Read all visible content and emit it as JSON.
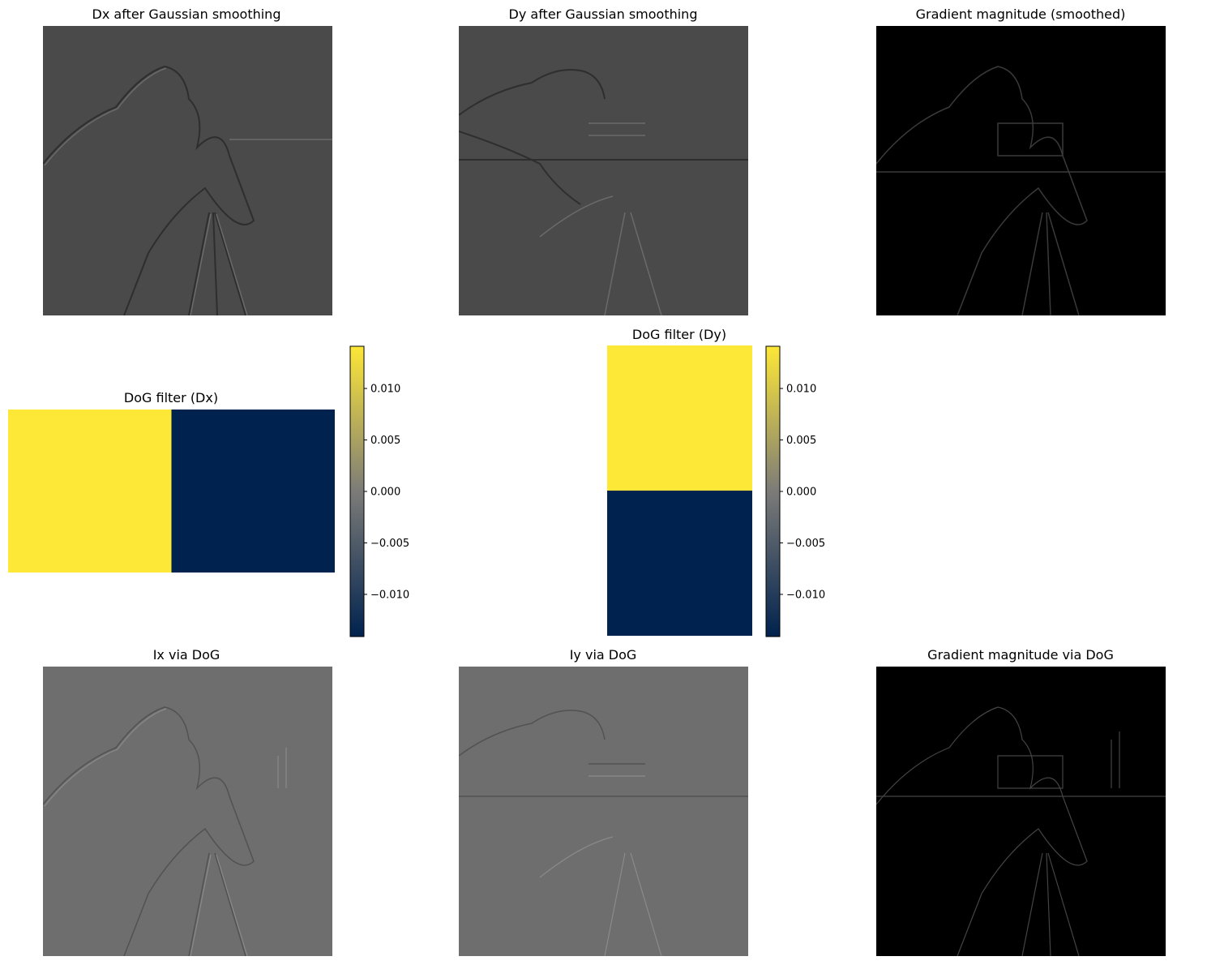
{
  "chart_data": [
    {
      "type": "heatmap",
      "title": "Dx after Gaussian smoothing",
      "colormap": "gray",
      "axis": "off",
      "content": "image"
    },
    {
      "type": "heatmap",
      "title": "Dy after Gaussian smoothing",
      "colormap": "gray",
      "axis": "off",
      "content": "image"
    },
    {
      "type": "heatmap",
      "title": "Gradient magnitude (smoothed)",
      "colormap": "gray",
      "axis": "off",
      "content": "image"
    },
    {
      "type": "heatmap",
      "title": "DoG filter (Dx)",
      "colormap": "cividis",
      "axis": "off",
      "rows": 1,
      "cols": 2,
      "values": [
        [
          0.0141,
          -0.0141
        ]
      ],
      "colorbar": {
        "ticks": [
          "0.010",
          "0.005",
          "0.000",
          "−0.005",
          "−0.010"
        ],
        "tick_values": [
          0.01,
          0.005,
          0.0,
          -0.005,
          -0.01
        ],
        "vmin": -0.0141,
        "vmax": 0.0141
      }
    },
    {
      "type": "heatmap",
      "title": "DoG filter (Dy)",
      "colormap": "cividis",
      "axis": "off",
      "rows": 2,
      "cols": 1,
      "values": [
        [
          0.0141
        ],
        [
          -0.0141
        ]
      ],
      "colorbar": {
        "ticks": [
          "0.010",
          "0.005",
          "0.000",
          "−0.005",
          "−0.010"
        ],
        "tick_values": [
          0.01,
          0.005,
          0.0,
          -0.005,
          -0.01
        ],
        "vmin": -0.0141,
        "vmax": 0.0141
      }
    },
    {
      "type": "heatmap",
      "title": "Ix via DoG",
      "colormap": "gray",
      "axis": "off",
      "content": "image"
    },
    {
      "type": "heatmap",
      "title": "Iy via DoG",
      "colormap": "gray",
      "axis": "off",
      "content": "image"
    },
    {
      "type": "heatmap",
      "title": "Gradient magnitude via DoG",
      "colormap": "gray",
      "axis": "off",
      "content": "image"
    }
  ],
  "colors": {
    "cividis_high": "#fde737",
    "cividis_low": "#00224e",
    "cividis_mid": "#7c7b78",
    "image_dark_gray": "#4a4a4a",
    "image_mid_gray": "#6e6e6e",
    "image_black": "#000000"
  }
}
